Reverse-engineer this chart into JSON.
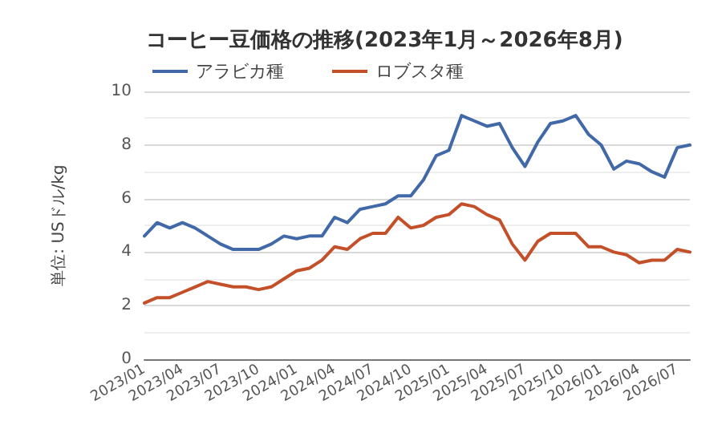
{
  "chart_data": {
    "type": "line",
    "title": "コーヒー豆価格の推移(2023年1月～2026年8月)",
    "ylabel": "単位: USドル/kg",
    "categories": [
      "2023/01",
      null,
      null,
      "2023/04",
      null,
      null,
      "2023/07",
      null,
      null,
      "2023/10",
      null,
      null,
      "2024/01",
      null,
      null,
      "2024/04",
      null,
      null,
      "2024/07",
      null,
      null,
      "2024/10",
      null,
      null,
      "2025/01",
      null,
      null,
      "2025/04",
      null,
      null,
      "2025/07",
      null,
      null,
      "2025/10",
      null,
      null,
      "2026/01",
      null,
      null,
      "2026/04",
      null,
      null,
      "2026/07",
      null
    ],
    "series": [
      {
        "name": "アラビカ種",
        "color": "#4169a8",
        "values": [
          4.6,
          5.1,
          4.9,
          5.1,
          4.9,
          4.6,
          4.3,
          4.1,
          4.1,
          4.1,
          4.3,
          4.6,
          4.5,
          4.6,
          4.6,
          5.3,
          5.1,
          5.6,
          5.7,
          5.8,
          6.1,
          6.1,
          6.7,
          7.6,
          7.8,
          9.1,
          8.9,
          8.7,
          8.8,
          7.9,
          7.2,
          8.1,
          8.8,
          8.9,
          9.1,
          8.4,
          8.0,
          7.1,
          7.4,
          7.3,
          7.0,
          6.8,
          7.9,
          8.0
        ]
      },
      {
        "name": "ロブスタ種",
        "color": "#c4502a",
        "values": [
          2.1,
          2.3,
          2.3,
          2.5,
          2.7,
          2.9,
          2.8,
          2.7,
          2.7,
          2.6,
          2.7,
          3.0,
          3.3,
          3.4,
          3.7,
          4.2,
          4.1,
          4.5,
          4.7,
          4.7,
          5.3,
          4.9,
          5.0,
          5.3,
          5.4,
          5.8,
          5.7,
          5.4,
          5.2,
          4.3,
          3.7,
          4.4,
          4.7,
          4.7,
          4.7,
          4.2,
          4.2,
          4.0,
          3.9,
          3.6,
          3.7,
          3.7,
          4.1,
          4.0
        ]
      }
    ],
    "ylim": [
      0,
      10
    ],
    "yticks": [
      0,
      2,
      4,
      6,
      8,
      10
    ],
    "grid": "y",
    "legend": "top left",
    "marker": "none",
    "line_style": "solid"
  }
}
